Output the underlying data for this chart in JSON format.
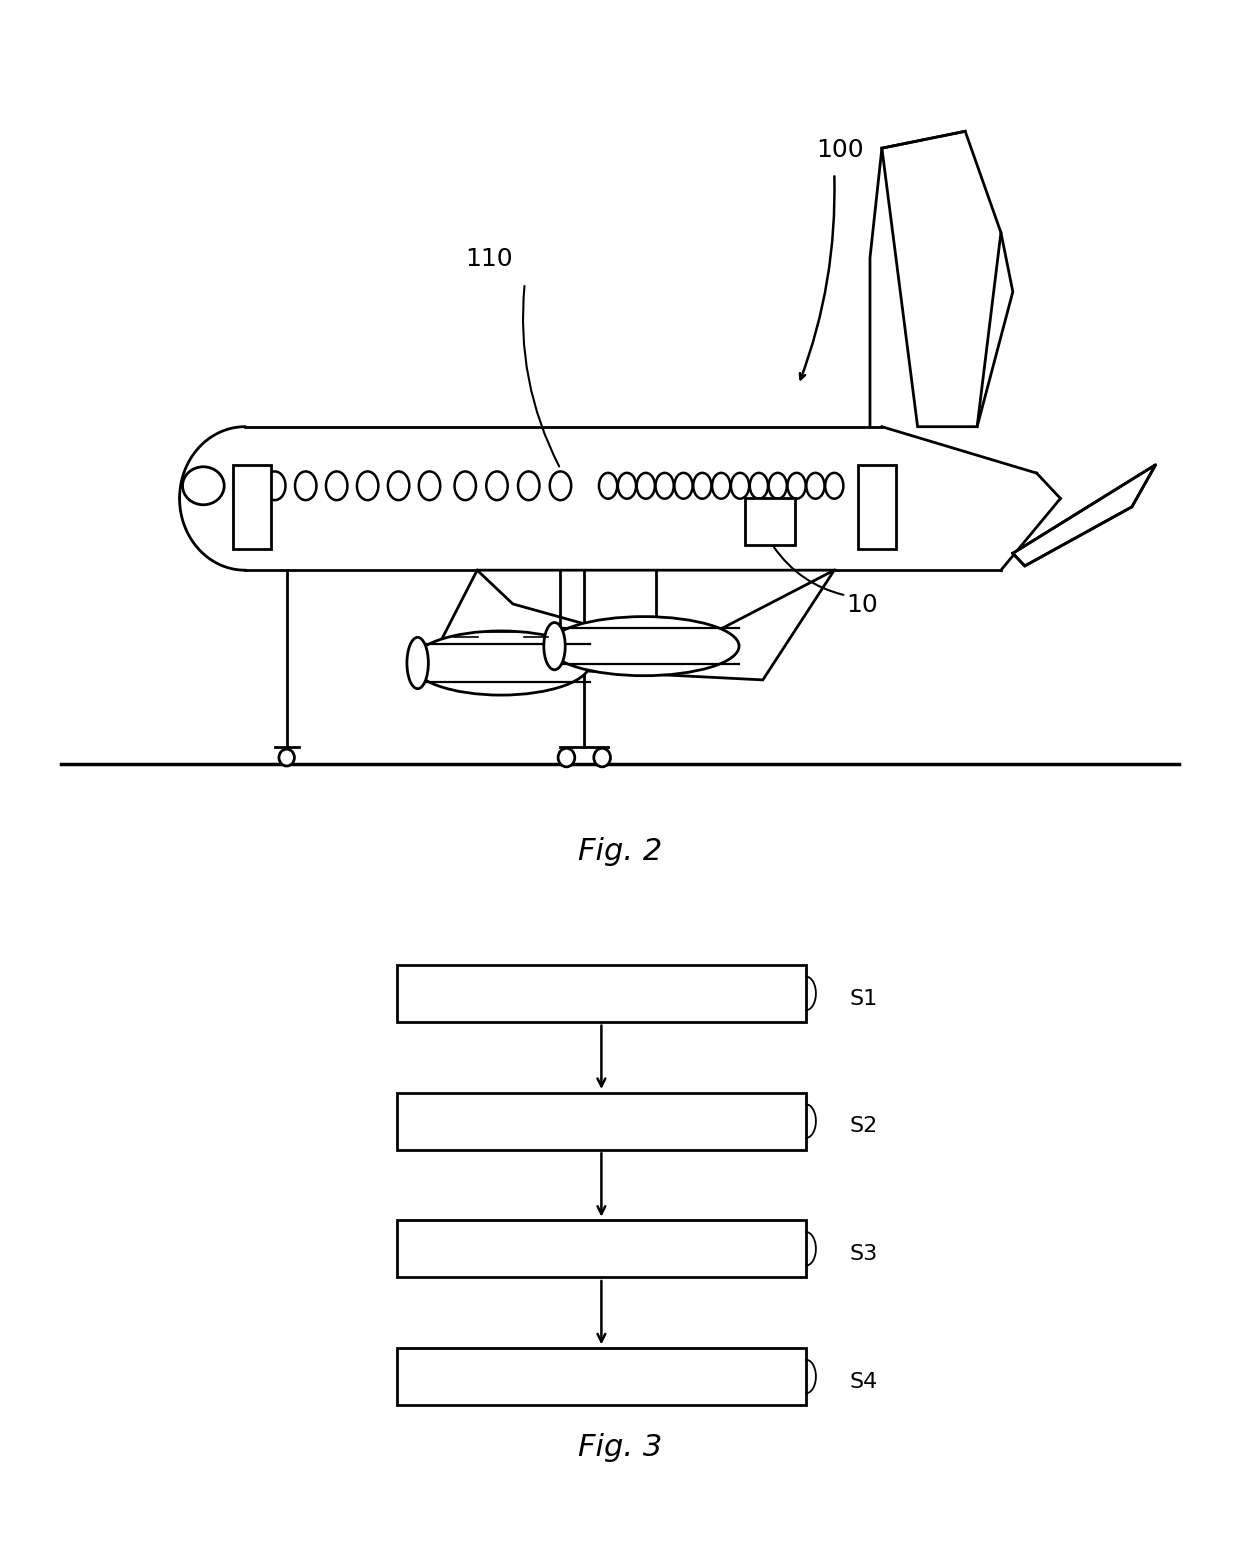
{
  "background_color": "#ffffff",
  "fig2_label": "Fig. 2",
  "fig3_label": "Fig. 3",
  "label_100": "100",
  "label_110": "110",
  "label_10": "10",
  "steps": [
    "S1",
    "S2",
    "S3",
    "S4"
  ],
  "line_color": "#000000",
  "text_color": "#000000",
  "font_size_label": 18,
  "font_size_step": 16,
  "font_size_fig": 22
}
